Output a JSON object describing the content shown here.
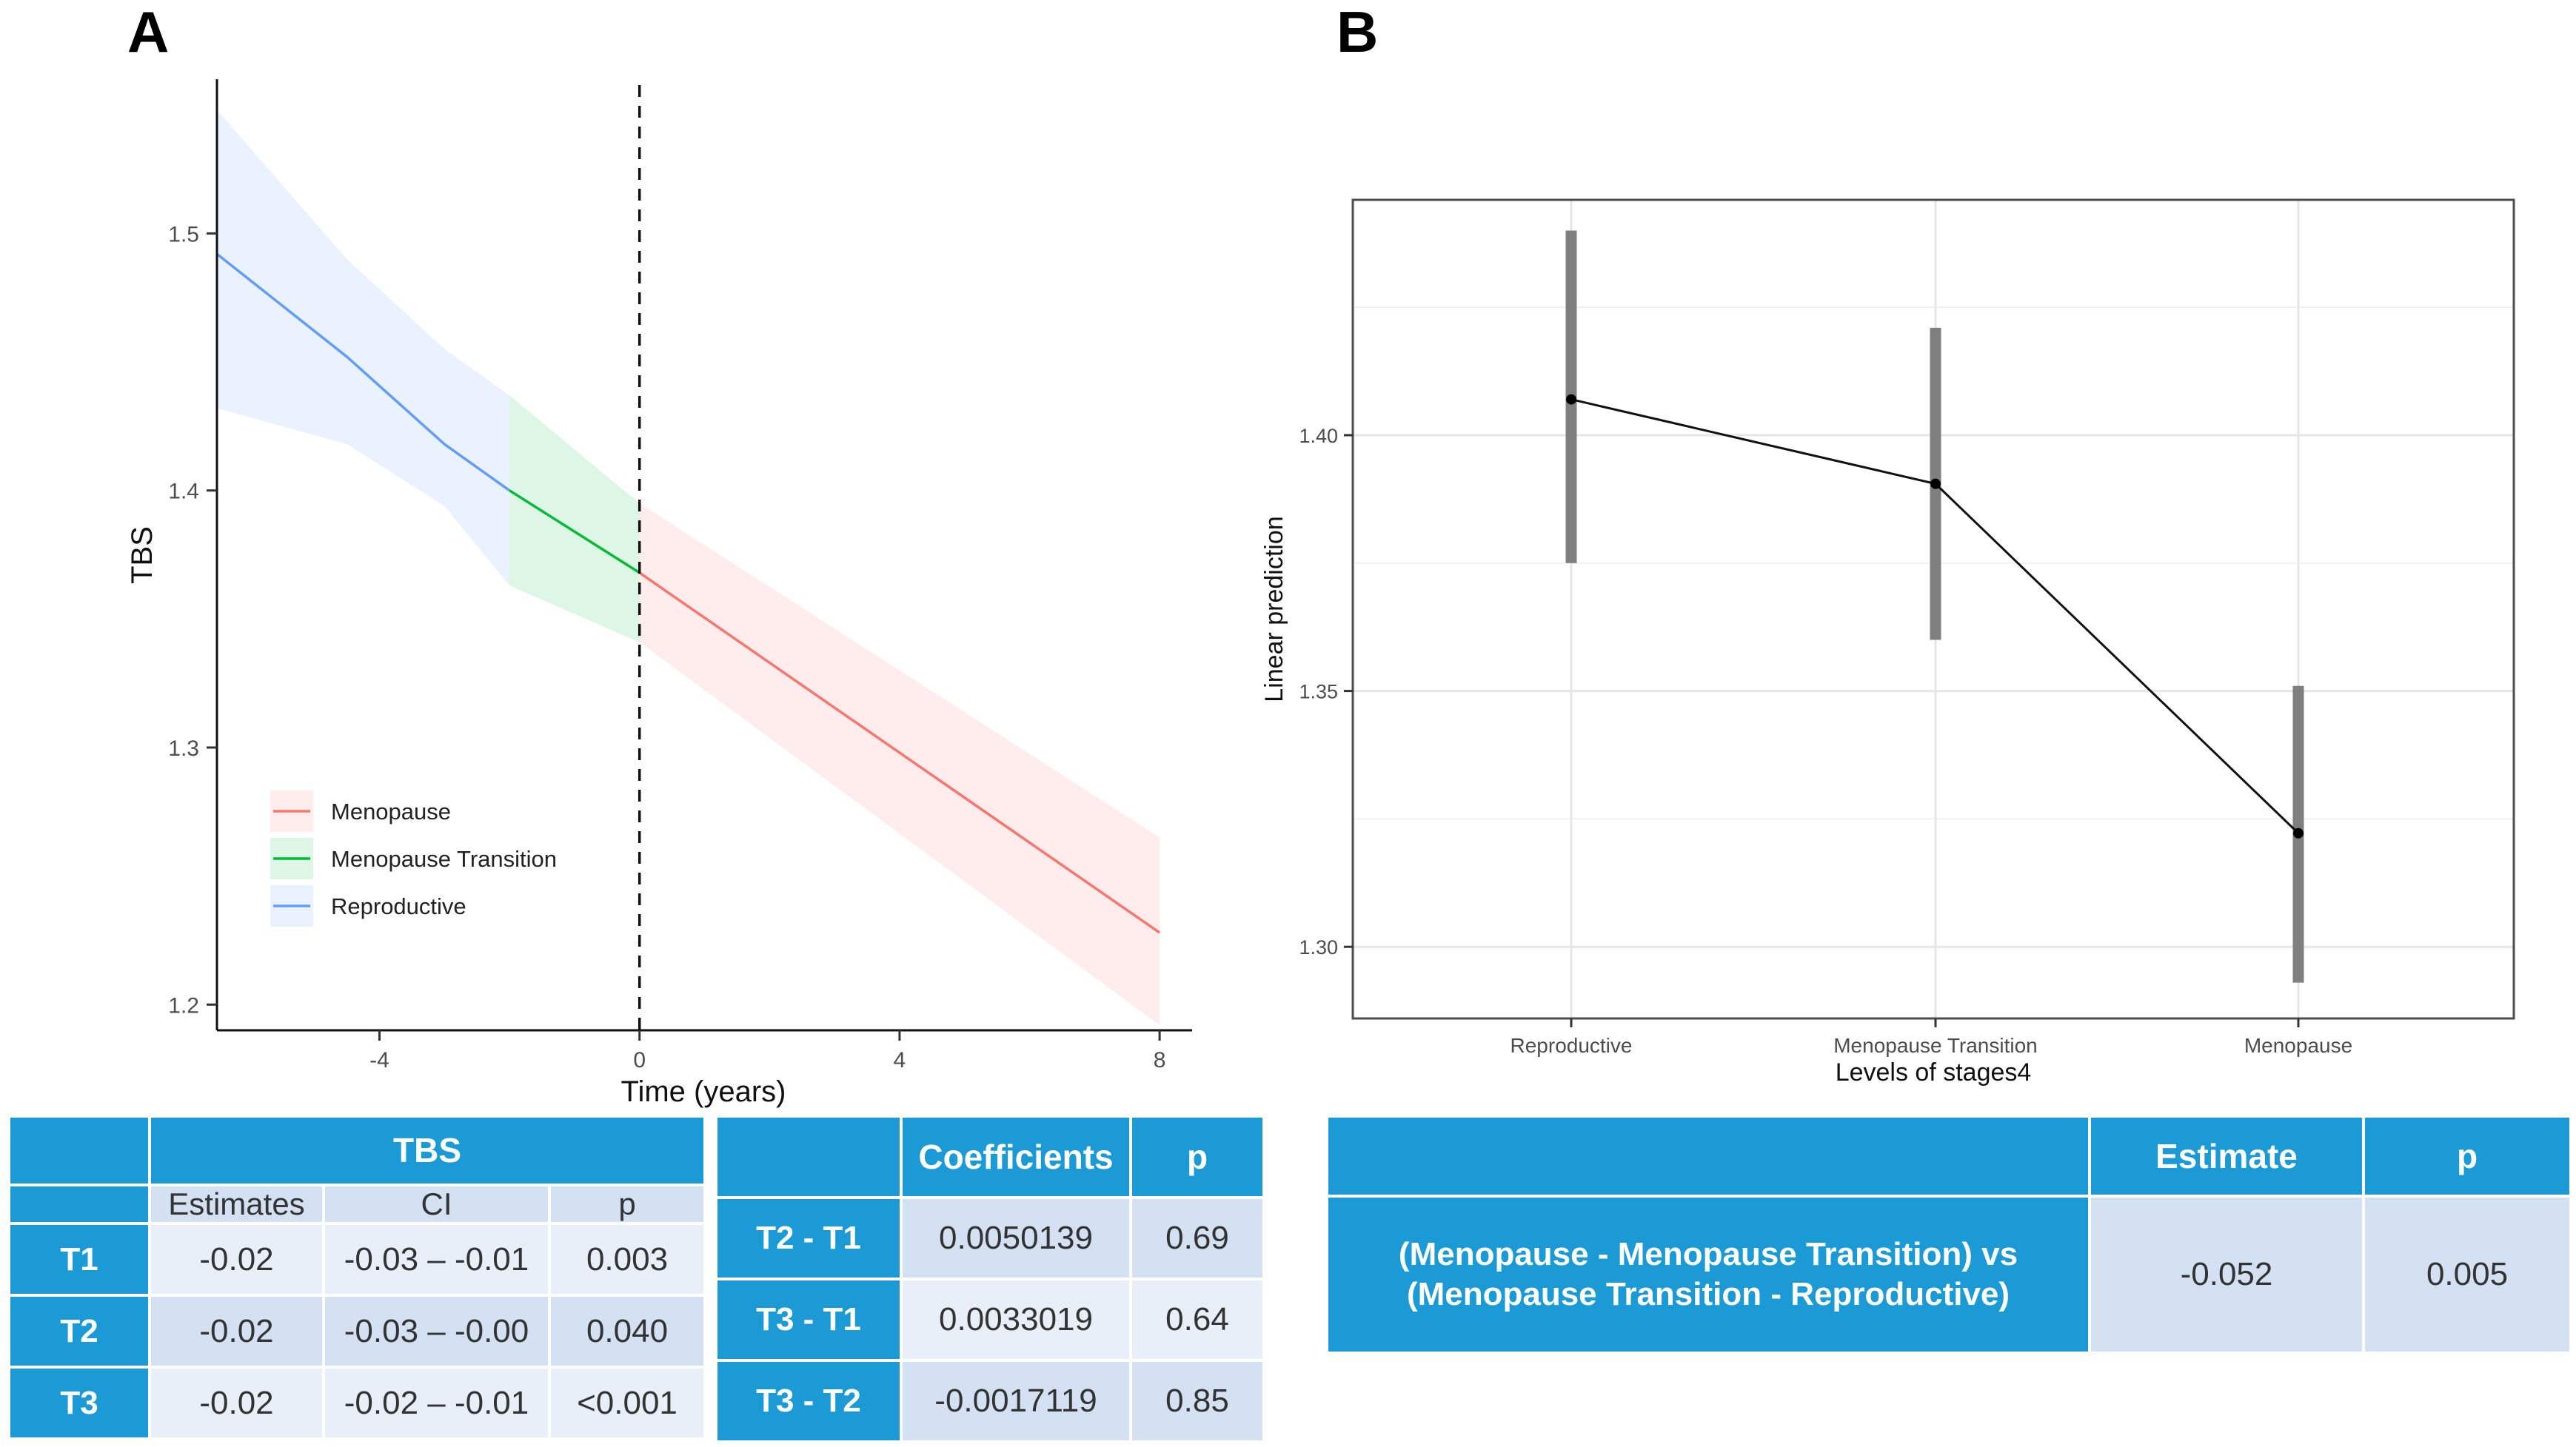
{
  "panels": {
    "a": "A",
    "b": "B"
  },
  "chart_data": [
    {
      "id": "panel-a",
      "type": "line",
      "xlabel": "Time (years)",
      "ylabel": "TBS",
      "xlim": [
        -6.5,
        8.5
      ],
      "ylim": [
        1.19,
        1.56
      ],
      "x_ticks": [
        -4,
        0,
        4,
        8
      ],
      "y_ticks": [
        1.2,
        1.3,
        1.4,
        1.5
      ],
      "grid": false,
      "vline": 0,
      "legend_position": "bottom-left",
      "legend": [
        "Menopause",
        "Menopause Transition",
        "Reproductive"
      ],
      "colors": {
        "Menopause": "#f8766d",
        "Menopause Transition": "#00ba38",
        "Reproductive": "#619cff"
      },
      "series": [
        {
          "name": "Reproductive",
          "x": [
            -6.5,
            -4.5,
            -3,
            -2
          ],
          "y": [
            1.492,
            1.452,
            1.418,
            1.4
          ],
          "lower": [
            1.432,
            1.418,
            1.394,
            1.363
          ],
          "upper": [
            1.548,
            1.49,
            1.455,
            1.437
          ]
        },
        {
          "name": "Menopause Transition",
          "x": [
            -2,
            0
          ],
          "y": [
            1.4,
            1.368
          ],
          "lower": [
            1.363,
            1.341
          ],
          "upper": [
            1.437,
            1.395
          ]
        },
        {
          "name": "Menopause",
          "x": [
            0,
            8
          ],
          "y": [
            1.368,
            1.228
          ],
          "lower": [
            1.341,
            1.192
          ],
          "upper": [
            1.395,
            1.265
          ]
        }
      ]
    },
    {
      "id": "panel-b",
      "type": "line",
      "xlabel": "Levels of stages4",
      "ylabel": "Linear prediction",
      "categories": [
        "Reproductive",
        "Menopause Transition",
        "Menopause"
      ],
      "values": [
        1.407,
        1.3905,
        1.3222
      ],
      "lower": [
        1.375,
        1.36,
        1.293
      ],
      "upper": [
        1.44,
        1.421,
        1.351
      ],
      "ylim": [
        1.286,
        1.446
      ],
      "y_ticks": [
        1.3,
        1.35,
        1.4
      ],
      "y_tick_labels": [
        "1.30",
        "1.35",
        "1.40"
      ],
      "grid": true
    }
  ],
  "table_a": {
    "group_header": "TBS",
    "sub_headers": [
      "Estimates",
      "CI",
      "p"
    ],
    "rows": [
      {
        "label": "T1",
        "est": "-0.02",
        "ci": "-0.03 – -0.01",
        "p": "0.003"
      },
      {
        "label": "T2",
        "est": "-0.02",
        "ci": "-0.03 – -0.00",
        "p": "0.040"
      },
      {
        "label": "T3",
        "est": "-0.02",
        "ci": "-0.02 – -0.01",
        "p": "<0.001"
      }
    ]
  },
  "table_b": {
    "headers": [
      "Coefficients",
      "p"
    ],
    "rows": [
      {
        "label": "T2 - T1",
        "coef": "0.0050139",
        "p": "0.69"
      },
      {
        "label": "T3 - T1",
        "coef": "0.0033019",
        "p": "0.64"
      },
      {
        "label": "T3 - T2",
        "coef": "-0.0017119",
        "p": "0.85"
      }
    ]
  },
  "table_c": {
    "headers": [
      "Estimate",
      "p"
    ],
    "row": {
      "label_line1": "(Menopause - Menopause Transition) vs",
      "label_line2": "(Menopause Transition - Reproductive)",
      "estimate": "-0.052",
      "p": "0.005"
    }
  }
}
